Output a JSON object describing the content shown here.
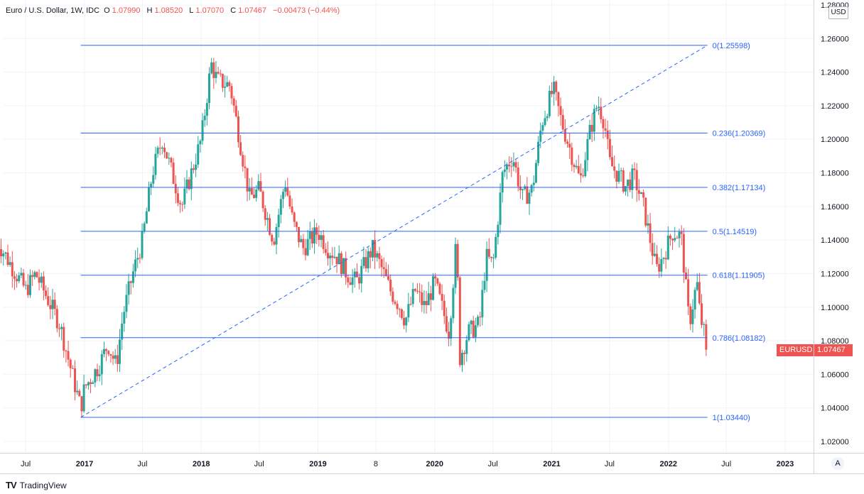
{
  "legend": {
    "symbol": "Euro / U.S. Dollar, 1W, IDC",
    "open_label": "O",
    "open": "1.07990",
    "high_label": "H",
    "high": "1.08520",
    "low_label": "L",
    "low": "1.07070",
    "close_label": "C",
    "close": "1.07467",
    "change": "−0.00473 (−0.44%)"
  },
  "currency": "USD",
  "auto_button": "A",
  "footer": {
    "logo": "TV",
    "brand": "TradingView"
  },
  "price_tag": {
    "symbol": "EURUSD",
    "price": "1.07467"
  },
  "colors": {
    "up": "#26a69a",
    "down": "#ef5350",
    "fib": "#2962ff",
    "fib_text": "#2962ff",
    "grid": "#f0f3fa"
  },
  "chart_data": {
    "type": "candlestick",
    "title": "Euro / U.S. Dollar, 1W, IDC",
    "y_axis": {
      "ylim": [
        1.01,
        1.28
      ],
      "ticks": [
        "1.28000",
        "1.26000",
        "1.24000",
        "1.22000",
        "1.20000",
        "1.18000",
        "1.16000",
        "1.14000",
        "1.12000",
        "1.10000",
        "1.08000",
        "1.06000",
        "1.04000",
        "1.02000"
      ],
      "scale": "linear"
    },
    "x_axis": {
      "range": [
        "2016-04-01",
        "2023-04-01"
      ],
      "ticks": [
        {
          "date": "2016-07-01",
          "label": "Jul"
        },
        {
          "date": "2017-01-01",
          "label": "2017"
        },
        {
          "date": "2017-07-01",
          "label": "Jul"
        },
        {
          "date": "2018-01-01",
          "label": "2018"
        },
        {
          "date": "2018-07-01",
          "label": "Jul"
        },
        {
          "date": "2019-01-01",
          "label": "2019"
        },
        {
          "date": "2019-07-01",
          "label": "8"
        },
        {
          "date": "2020-01-01",
          "label": "2020"
        },
        {
          "date": "2020-07-01",
          "label": "Jul"
        },
        {
          "date": "2021-01-01",
          "label": "2021"
        },
        {
          "date": "2021-07-01",
          "label": "Jul"
        },
        {
          "date": "2022-01-01",
          "label": "2022"
        },
        {
          "date": "2022-07-01",
          "label": "Jul"
        },
        {
          "date": "2023-01-01",
          "label": "2023"
        }
      ]
    },
    "price_path": [
      {
        "date": "2016-04-01",
        "price": 1.14
      },
      {
        "date": "2016-05-01",
        "price": 1.13
      },
      {
        "date": "2016-07-01",
        "price": 1.11
      },
      {
        "date": "2016-08-01",
        "price": 1.12
      },
      {
        "date": "2016-10-15",
        "price": 1.09
      },
      {
        "date": "2016-11-10",
        "price": 1.07
      },
      {
        "date": "2016-12-20",
        "price": 1.04
      },
      {
        "date": "2017-01-01",
        "price": 1.052
      },
      {
        "date": "2017-02-15",
        "price": 1.065
      },
      {
        "date": "2017-03-15",
        "price": 1.078
      },
      {
        "date": "2017-04-10",
        "price": 1.065
      },
      {
        "date": "2017-05-01",
        "price": 1.095
      },
      {
        "date": "2017-06-01",
        "price": 1.12
      },
      {
        "date": "2017-07-01",
        "price": 1.14
      },
      {
        "date": "2017-08-01",
        "price": 1.18
      },
      {
        "date": "2017-09-01",
        "price": 1.2
      },
      {
        "date": "2017-10-01",
        "price": 1.18
      },
      {
        "date": "2017-11-01",
        "price": 1.16
      },
      {
        "date": "2017-12-01",
        "price": 1.18
      },
      {
        "date": "2018-01-01",
        "price": 1.2
      },
      {
        "date": "2018-02-01",
        "price": 1.245
      },
      {
        "date": "2018-02-20",
        "price": 1.235
      },
      {
        "date": "2018-04-01",
        "price": 1.232
      },
      {
        "date": "2018-05-01",
        "price": 1.2
      },
      {
        "date": "2018-06-01",
        "price": 1.165
      },
      {
        "date": "2018-07-01",
        "price": 1.17
      },
      {
        "date": "2018-08-15",
        "price": 1.14
      },
      {
        "date": "2018-09-20",
        "price": 1.175
      },
      {
        "date": "2018-10-15",
        "price": 1.15
      },
      {
        "date": "2018-11-15",
        "price": 1.135
      },
      {
        "date": "2019-01-01",
        "price": 1.145
      },
      {
        "date": "2019-02-01",
        "price": 1.135
      },
      {
        "date": "2019-03-01",
        "price": 1.13
      },
      {
        "date": "2019-04-01",
        "price": 1.12
      },
      {
        "date": "2019-05-01",
        "price": 1.115
      },
      {
        "date": "2019-06-20",
        "price": 1.135
      },
      {
        "date": "2019-07-15",
        "price": 1.125
      },
      {
        "date": "2019-08-15",
        "price": 1.11
      },
      {
        "date": "2019-09-15",
        "price": 1.1
      },
      {
        "date": "2019-10-01",
        "price": 1.092
      },
      {
        "date": "2019-11-01",
        "price": 1.11
      },
      {
        "date": "2019-12-01",
        "price": 1.1
      },
      {
        "date": "2020-01-01",
        "price": 1.115
      },
      {
        "date": "2020-02-15",
        "price": 1.085
      },
      {
        "date": "2020-03-09",
        "price": 1.14
      },
      {
        "date": "2020-03-20",
        "price": 1.07
      },
      {
        "date": "2020-04-15",
        "price": 1.085
      },
      {
        "date": "2020-05-20",
        "price": 1.09
      },
      {
        "date": "2020-06-10",
        "price": 1.13
      },
      {
        "date": "2020-07-01",
        "price": 1.125
      },
      {
        "date": "2020-08-01",
        "price": 1.18
      },
      {
        "date": "2020-09-01",
        "price": 1.19
      },
      {
        "date": "2020-10-01",
        "price": 1.165
      },
      {
        "date": "2020-11-01",
        "price": 1.17
      },
      {
        "date": "2020-12-01",
        "price": 1.21
      },
      {
        "date": "2021-01-06",
        "price": 1.23
      },
      {
        "date": "2021-02-01",
        "price": 1.21
      },
      {
        "date": "2021-03-31",
        "price": 1.175
      },
      {
        "date": "2021-05-01",
        "price": 1.205
      },
      {
        "date": "2021-05-25",
        "price": 1.222
      },
      {
        "date": "2021-06-15",
        "price": 1.21
      },
      {
        "date": "2021-07-01",
        "price": 1.186
      },
      {
        "date": "2021-08-20",
        "price": 1.172
      },
      {
        "date": "2021-09-15",
        "price": 1.178
      },
      {
        "date": "2021-10-15",
        "price": 1.16
      },
      {
        "date": "2021-11-24",
        "price": 1.122
      },
      {
        "date": "2021-12-15",
        "price": 1.13
      },
      {
        "date": "2022-01-15",
        "price": 1.145
      },
      {
        "date": "2022-02-10",
        "price": 1.142
      },
      {
        "date": "2022-03-07",
        "price": 1.09
      },
      {
        "date": "2022-03-31",
        "price": 1.115
      },
      {
        "date": "2022-04-10",
        "price": 1.095
      },
      {
        "date": "2022-04-22",
        "price": 1.085
      },
      {
        "date": "2022-05-01",
        "price": 1.0747
      }
    ],
    "fibonacci": {
      "start": {
        "date": "2016-12-20",
        "price": 1.0344
      },
      "end": {
        "date": "2022-05-03",
        "price": 1.25598
      },
      "levels": [
        {
          "ratio": "0",
          "price": 1.25598,
          "label": "0(1.25598)"
        },
        {
          "ratio": "0.236",
          "price": 1.20369,
          "label": "0.236(1.20369)"
        },
        {
          "ratio": "0.382",
          "price": 1.17134,
          "label": "0.382(1.17134)"
        },
        {
          "ratio": "0.5",
          "price": 1.14519,
          "label": "0.5(1.14519)"
        },
        {
          "ratio": "0.618",
          "price": 1.11905,
          "label": "0.618(1.11905)"
        },
        {
          "ratio": "0.786",
          "price": 1.08182,
          "label": "0.786(1.08182)"
        },
        {
          "ratio": "1",
          "price": 1.0344,
          "label": "1(1.03440)"
        }
      ]
    },
    "last": {
      "price": 1.07467,
      "symbol": "EURUSD"
    },
    "grid": true
  }
}
